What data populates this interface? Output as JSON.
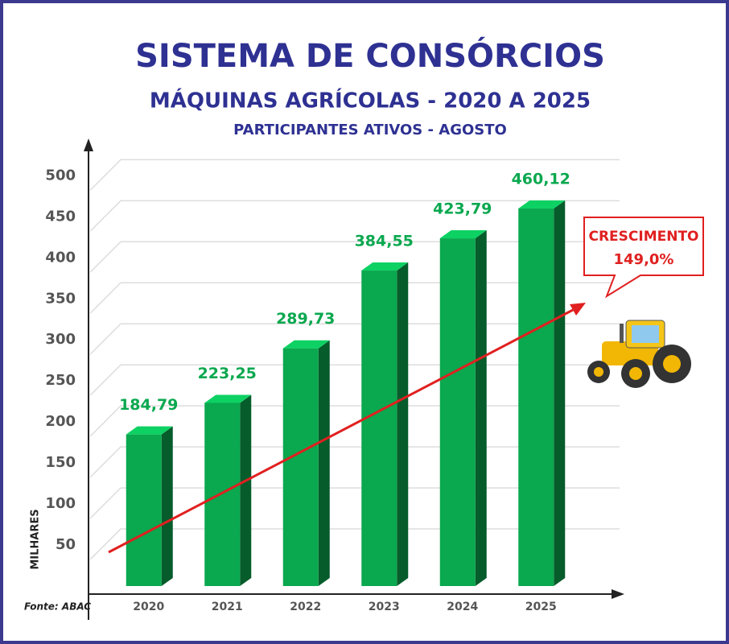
{
  "chart_data": {
    "type": "bar3d",
    "title": "SISTEMA DE CONSÓRCIOS",
    "subtitles": [
      "MÁQUINAS AGRÍCOLAS - 2020 A 2025",
      "PARTICIPANTES ATIVOS - AGOSTO"
    ],
    "y_label": "MILHARES",
    "source": "Fonte: ABAC",
    "categories": [
      "2020",
      "2021",
      "2022",
      "2023",
      "2024",
      "2025"
    ],
    "values": [
      184.79,
      223.25,
      289.73,
      384.55,
      423.79,
      460.12
    ],
    "value_labels": [
      "184,79",
      "223,25",
      "289,73",
      "384,55",
      "423,79",
      "460,12"
    ],
    "color": "#0aa84f",
    "ylim": [
      0,
      520
    ],
    "yticks": [
      50,
      100,
      150,
      200,
      250,
      300,
      350,
      400,
      450,
      500
    ],
    "grid": true,
    "annotations": [
      "CRESCIMENTO",
      "149,0%"
    ]
  }
}
